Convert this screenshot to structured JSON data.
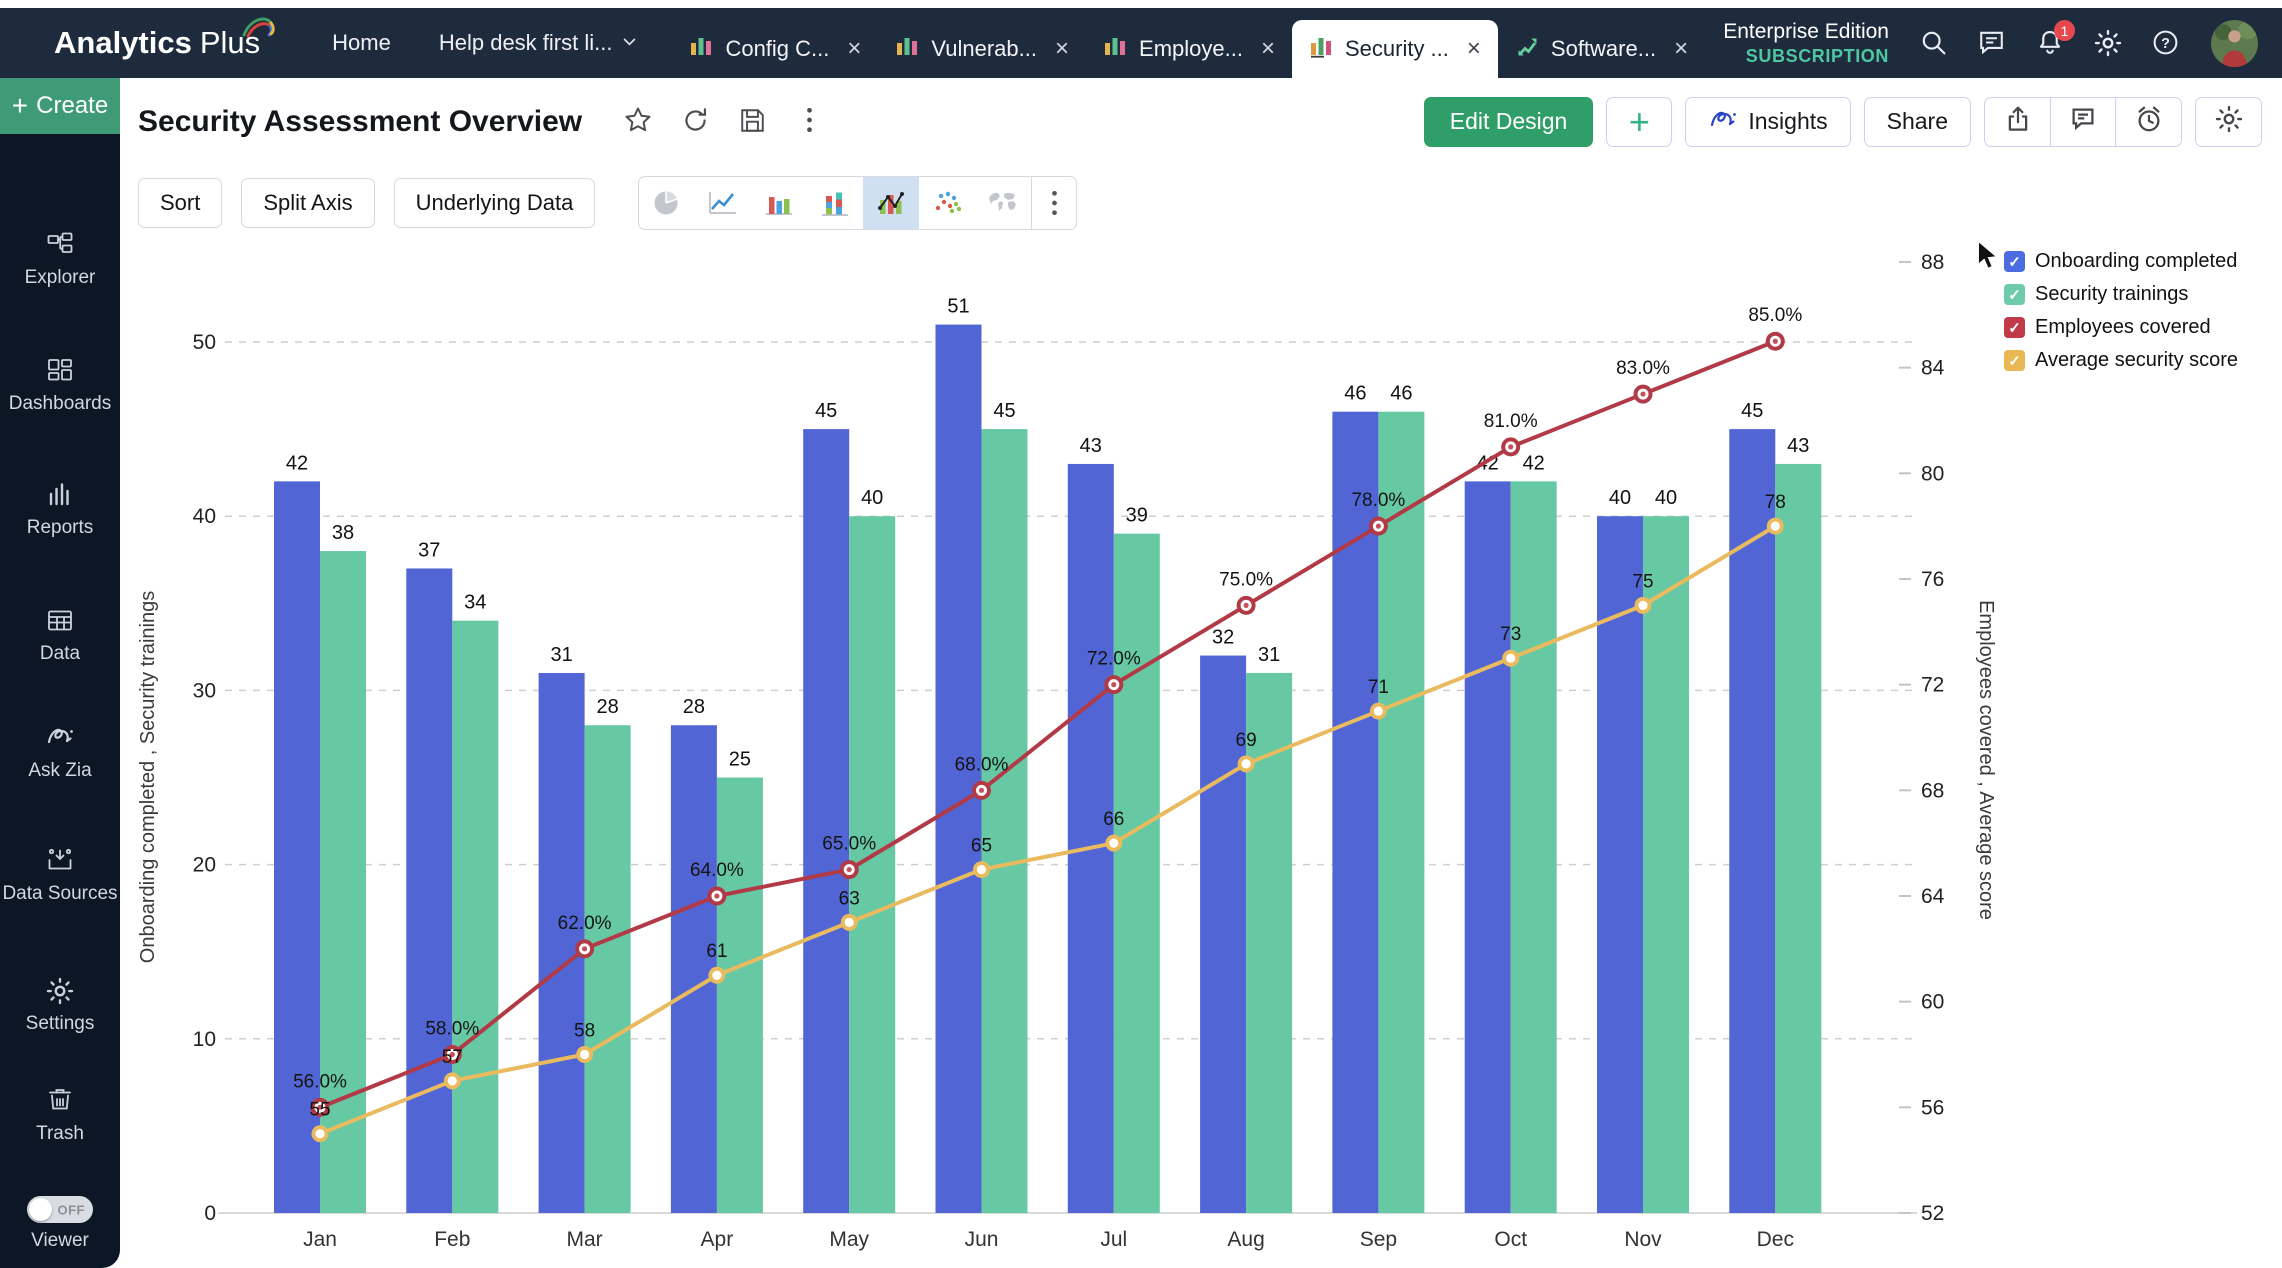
{
  "colors": {
    "nav_bg": "#1e2b3d",
    "sidebar_bg": "#0d1624",
    "create_green": "#3f9b77",
    "edit_design_green": "#2f9e68",
    "subscription_teal": "#4fc8a2",
    "notification_badge": "#e5484d",
    "selected_chart_type_bg": "#cfe0f2"
  },
  "navbar": {
    "brand": {
      "name": "Analytics",
      "suffix": "Plus"
    },
    "menu": [
      {
        "label": "Home"
      },
      {
        "label": "Help desk first li...",
        "has_dropdown": true
      }
    ],
    "tabs": [
      {
        "label": "Config C...",
        "icon": "bar-chart-tab-icon",
        "active": false
      },
      {
        "label": "Vulnerab...",
        "icon": "bar-chart-tab-icon",
        "active": false
      },
      {
        "label": "Employe...",
        "icon": "bar-chart-tab-icon",
        "active": false
      },
      {
        "label": "Security ...",
        "icon": "bar-chart-tab-icon",
        "active": true
      },
      {
        "label": "Software...",
        "icon": "line-chart-tab-icon",
        "active": false
      }
    ],
    "edition": {
      "line1": "Enterprise Edition",
      "line2": "SUBSCRIPTION"
    },
    "icons": [
      "search-icon",
      "chat-icon",
      "bell-icon",
      "gear-icon",
      "help-icon"
    ],
    "notification_count": "1"
  },
  "sidebar": {
    "create_label": "Create",
    "items": [
      {
        "label": "Explorer",
        "icon": "explorer-icon"
      },
      {
        "label": "Dashboards",
        "icon": "dashboards-icon"
      },
      {
        "label": "Reports",
        "icon": "reports-icon"
      },
      {
        "label": "Data",
        "icon": "data-icon"
      },
      {
        "label": "Ask Zia",
        "icon": "ask-zia-icon"
      },
      {
        "label": "Data Sources",
        "icon": "data-sources-icon"
      },
      {
        "label": "Settings",
        "icon": "settings-icon"
      },
      {
        "label": "Trash",
        "icon": "trash-icon"
      }
    ],
    "viewer_toggle": {
      "label": "Viewer",
      "state": "OFF"
    }
  },
  "header": {
    "title": "Security Assessment Overview",
    "title_icons": [
      "star-icon",
      "refresh-icon",
      "save-icon",
      "kebab-menu-icon"
    ],
    "edit_design_label": "Edit Design",
    "insights_label": "Insights",
    "share_label": "Share",
    "action_icons": [
      "export-icon",
      "comment-icon",
      "alarm-icon"
    ],
    "settings_icon": "gear-icon"
  },
  "toolbar": {
    "buttons": [
      {
        "label": "Sort"
      },
      {
        "label": "Split Axis"
      },
      {
        "label": "Underlying Data"
      }
    ],
    "chart_types": [
      {
        "name": "pie-chart-icon",
        "selected": false
      },
      {
        "name": "line-chart-icon",
        "selected": false
      },
      {
        "name": "bar-chart-icon",
        "selected": false
      },
      {
        "name": "stacked-bar-chart-icon",
        "selected": false
      },
      {
        "name": "combo-chart-icon",
        "selected": true
      },
      {
        "name": "scatter-chart-icon",
        "selected": false
      },
      {
        "name": "map-chart-icon",
        "selected": false
      }
    ]
  },
  "chart_data": {
    "type": "combo",
    "title": "Security Assessment Overview",
    "categories": [
      "Jan",
      "Feb",
      "Mar",
      "Apr",
      "May",
      "Jun",
      "Jul",
      "Aug",
      "Sep",
      "Oct",
      "Nov",
      "Dec"
    ],
    "series": [
      {
        "name": "Onboarding completed",
        "render": "bar",
        "axis": "left",
        "color": "#5165d4",
        "values": [
          42,
          37,
          31,
          28,
          45,
          51,
          43,
          32,
          46,
          42,
          40,
          45
        ]
      },
      {
        "name": "Security trainings",
        "render": "bar",
        "axis": "left",
        "color": "#66c9a3",
        "values": [
          38,
          34,
          28,
          25,
          40,
          45,
          39,
          31,
          46,
          42,
          40,
          43
        ]
      },
      {
        "name": "Employees covered",
        "render": "line",
        "axis": "right",
        "color": "#b23a46",
        "values": [
          56,
          58,
          62,
          64,
          65,
          68,
          72,
          75,
          78,
          81,
          83,
          85
        ],
        "point_labels": [
          "56.0%",
          "58.0%",
          "62.0%",
          "64.0%",
          "65.0%",
          "68.0%",
          "72.0%",
          "75.0%",
          "78.0%",
          "81.0%",
          "83.0%",
          "85.0%"
        ]
      },
      {
        "name": "Average security score",
        "render": "line",
        "axis": "right",
        "color": "#e9ba5e",
        "values": [
          55,
          57,
          58,
          61,
          63,
          65,
          66,
          69,
          71,
          73,
          75,
          78
        ],
        "point_labels": [
          "55",
          "57",
          "58",
          "61",
          "63",
          "65",
          "66",
          "69",
          "71",
          "73",
          "75",
          "78"
        ]
      }
    ],
    "data_labels": true,
    "left_axis": {
      "title": "Onboarding completed , Security trainings",
      "ticks": [
        0,
        10,
        20,
        30,
        40,
        50
      ],
      "range": [
        0,
        55
      ]
    },
    "right_axis": {
      "title": "Employees covered , Average score",
      "ticks": [
        52,
        56,
        60,
        64,
        68,
        72,
        76,
        80,
        84,
        88
      ],
      "range": [
        52,
        88
      ]
    },
    "legend": {
      "position": "top-right",
      "items": [
        {
          "label": "Onboarding completed",
          "color": "#4a6ce0",
          "checked": true
        },
        {
          "label": "Security trainings",
          "color": "#6ecbaa",
          "checked": true
        },
        {
          "label": "Employees covered",
          "color": "#c03a4a",
          "checked": true
        },
        {
          "label": "Average security score",
          "color": "#e9b855",
          "checked": true
        }
      ]
    },
    "grid": "dashed-horizontal"
  }
}
